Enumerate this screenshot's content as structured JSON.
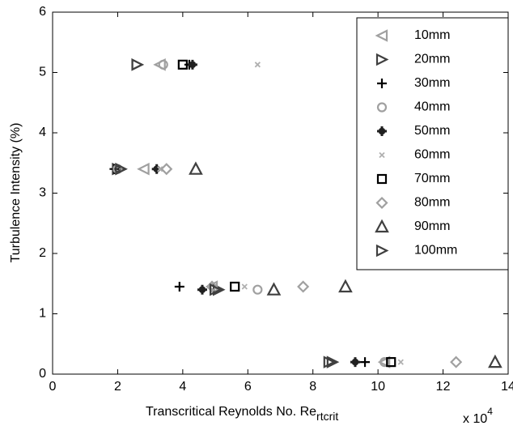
{
  "chart_data": {
    "type": "scatter",
    "x_label": "Transcritical Reynolds No. Re",
    "x_label_subscript": "rtcrit",
    "x_multiplier": "x 10",
    "x_multiplier_exponent": "4",
    "y_label": "Turbulence Intensity (%)",
    "xlim": [
      0,
      14
    ],
    "xticks": [
      0,
      2,
      4,
      6,
      8,
      10,
      12,
      14
    ],
    "ylim": [
      0,
      6
    ],
    "yticks": [
      0,
      1,
      2,
      3,
      4,
      5,
      6
    ],
    "legend": "upper right",
    "series": [
      {
        "name": "10mm",
        "marker": "triangle-left",
        "color": "#a0a0a0",
        "x": [
          3.3,
          2.8,
          4.9,
          10.2
        ],
        "y": [
          5.13,
          3.4,
          1.45,
          0.2
        ]
      },
      {
        "name": "20mm",
        "marker": "triangle-right",
        "color": "#404040",
        "x": [
          2.6,
          2.0,
          5.1,
          8.6
        ],
        "y": [
          5.13,
          3.4,
          1.4,
          0.2
        ]
      },
      {
        "name": "30mm",
        "marker": "plus",
        "color": "#000000",
        "x": [
          4.2,
          1.9,
          3.9,
          9.6
        ],
        "y": [
          5.13,
          3.4,
          1.45,
          0.2
        ]
      },
      {
        "name": "40mm",
        "marker": "circle",
        "color": "#a0a0a0",
        "x": [
          3.4,
          2.0,
          6.3,
          10.2
        ],
        "y": [
          5.13,
          3.4,
          1.4,
          0.2
        ]
      },
      {
        "name": "50mm",
        "marker": "star",
        "color": "#202020",
        "x": [
          4.3,
          3.2,
          4.6,
          9.3
        ],
        "y": [
          5.13,
          3.4,
          1.4,
          0.2
        ]
      },
      {
        "name": "60mm",
        "marker": "x",
        "color": "#b0b0b0",
        "x": [
          6.3,
          3.3,
          5.9,
          10.7
        ],
        "y": [
          5.13,
          3.4,
          1.45,
          0.2
        ]
      },
      {
        "name": "70mm",
        "marker": "square",
        "color": "#000000",
        "x": [
          4.0,
          5.6,
          10.4
        ],
        "y": [
          5.13,
          1.45,
          0.2
        ]
      },
      {
        "name": "80mm",
        "marker": "diamond",
        "color": "#a0a0a0",
        "x": [
          3.5,
          4.9,
          7.7,
          12.4
        ],
        "y": [
          3.4,
          1.45,
          1.45,
          0.2
        ]
      },
      {
        "name": "90mm",
        "marker": "triangle-up",
        "color": "#404040",
        "x": [
          4.4,
          6.8,
          9.0,
          13.6
        ],
        "y": [
          3.4,
          1.4,
          1.45,
          0.2
        ]
      },
      {
        "name": "100mm",
        "marker": "triangle-right",
        "color": "#404040",
        "x": [
          2.6,
          2.1,
          5.0,
          8.5
        ],
        "y": [
          5.13,
          3.4,
          1.4,
          0.2
        ]
      }
    ]
  }
}
